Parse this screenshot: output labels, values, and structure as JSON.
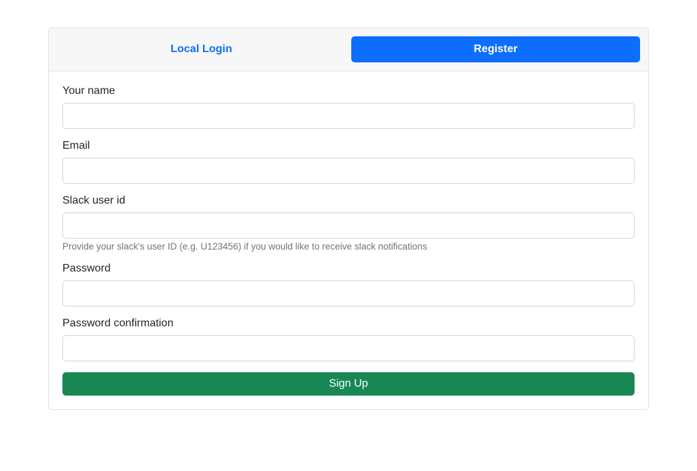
{
  "tabs": {
    "login": {
      "label": "Local Login",
      "active": false
    },
    "register": {
      "label": "Register",
      "active": true
    }
  },
  "form": {
    "name": {
      "label": "Your name",
      "value": ""
    },
    "email": {
      "label": "Email",
      "value": ""
    },
    "slack": {
      "label": "Slack user id",
      "value": "",
      "help": "Provide your slack's user ID (e.g. U123456) if you would like to receive slack notifications"
    },
    "password": {
      "label": "Password",
      "value": ""
    },
    "password_confirm": {
      "label": "Password confirmation",
      "value": ""
    },
    "submit": {
      "label": "Sign Up"
    }
  },
  "colors": {
    "primary": "#0d6efd",
    "success": "#198754",
    "border": "#dee2e6",
    "input_border": "#ced4da",
    "muted_text": "#6c757d",
    "tab_bg": "#f7f7f7",
    "text": "#212529"
  }
}
